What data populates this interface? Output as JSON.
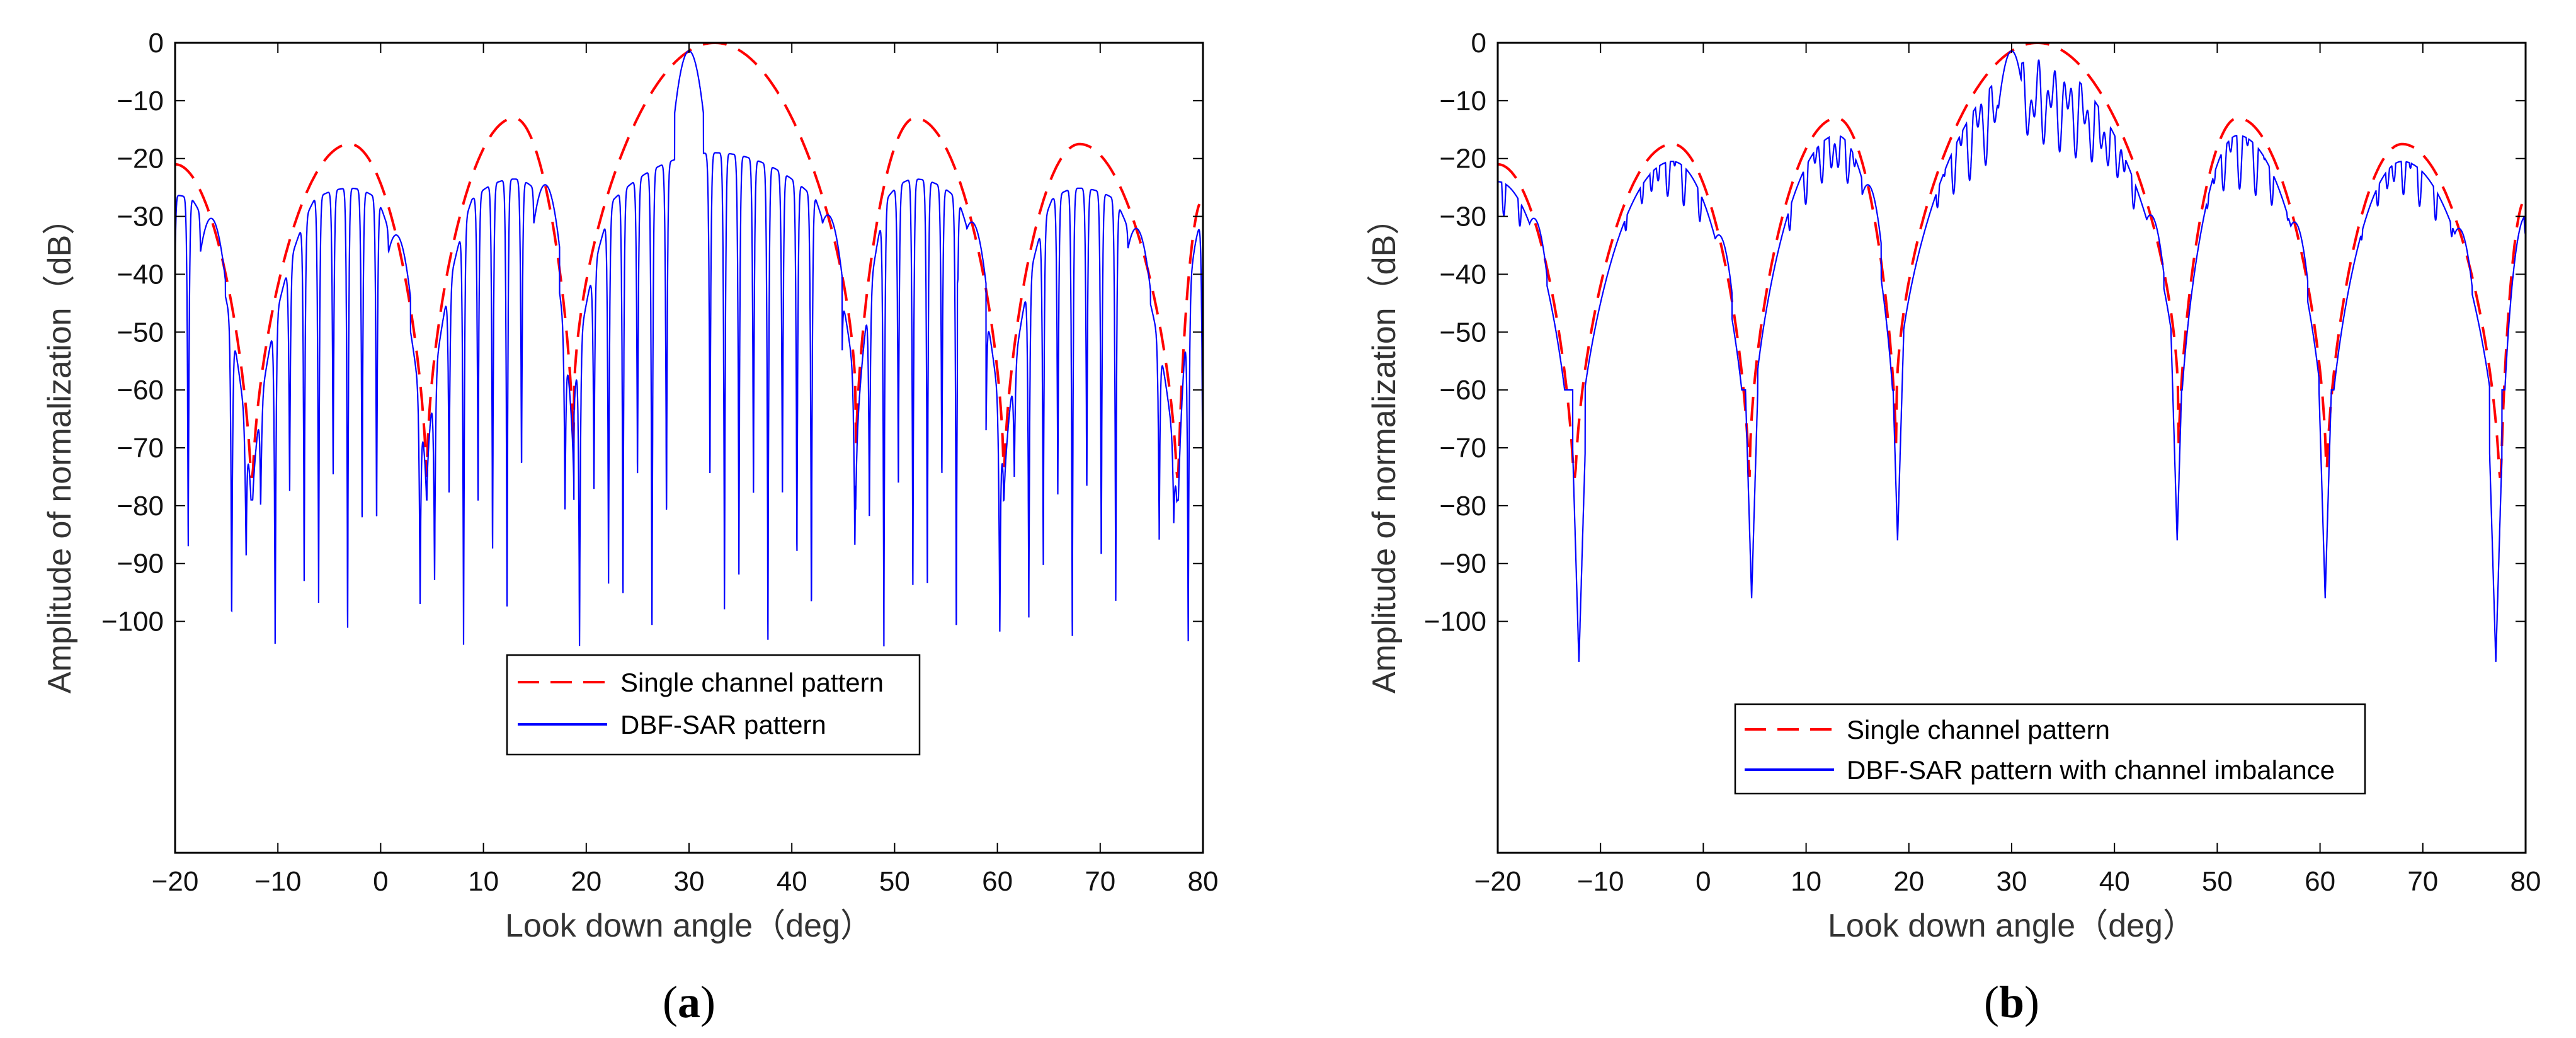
{
  "chart_data": [
    {
      "type": "line",
      "panel_label": "a",
      "xlabel": "Look down angle（deg）",
      "ylabel": "Amplitude of normalization（dB）",
      "xlim": [
        -20,
        80
      ],
      "ylim": [
        -140,
        0
      ],
      "xticks": [
        -20,
        -10,
        0,
        10,
        20,
        30,
        40,
        50,
        60,
        70,
        80
      ],
      "yticks": [
        0,
        -10,
        -20,
        -30,
        -40,
        -50,
        -60,
        -70,
        -80,
        -90,
        -100
      ],
      "xtick_labels": [
        "−20",
        "−10",
        "0",
        "10",
        "20",
        "30",
        "40",
        "50",
        "60",
        "70",
        "80"
      ],
      "ytick_labels": [
        "0",
        "−10",
        "−20",
        "−30",
        "−40",
        "−50",
        "−60",
        "−70",
        "−80",
        "−90",
        "−100"
      ],
      "legend": {
        "placement": "lower-center",
        "entries": [
          "Single channel pattern",
          "DBF-SAR pattern"
        ]
      },
      "series": [
        {
          "name": "Single channel pattern",
          "color": "#ff0000",
          "style": "dashed",
          "kind": "envelope",
          "nulls": [
            -12.5,
            4.5,
            18.8,
            46.2,
            60.6,
            77.5
          ],
          "lobes": [
            {
              "from": -20,
              "to": -12.5,
              "peak_x": -20,
              "peak_db": -21
            },
            {
              "from": -12.5,
              "to": 4.5,
              "peak_x": -3,
              "peak_db": -17.5
            },
            {
              "from": 4.5,
              "to": 18.8,
              "peak_x": 13,
              "peak_db": -13
            },
            {
              "from": 18.8,
              "to": 46.2,
              "peak_x": 32.5,
              "peak_db": 0
            },
            {
              "from": 46.2,
              "to": 60.6,
              "peak_x": 52,
              "peak_db": -13
            },
            {
              "from": 60.6,
              "to": 77.5,
              "peak_x": 68,
              "peak_db": -17.5
            },
            {
              "from": 77.5,
              "to": 80,
              "peak_x": 80,
              "peak_db": -27
            }
          ]
        },
        {
          "name": "DBF-SAR pattern",
          "color": "#0000ff",
          "style": "solid",
          "kind": "array",
          "main_beam": 30,
          "grating_lobes": [
            -16.5,
            1.5,
            16,
            43.5,
            57.5,
            73.5
          ],
          "sidelobe_level_db": -26,
          "null_depth_db": [
            -75,
            -105
          ],
          "lobes_between_nulls": 4
        }
      ]
    },
    {
      "type": "line",
      "panel_label": "b",
      "xlabel": "Look down angle（deg）",
      "ylabel": "Amplitude of normalization（dB）",
      "xlim": [
        -20,
        80
      ],
      "ylim": [
        -140,
        0
      ],
      "xticks": [
        -20,
        -10,
        0,
        10,
        20,
        30,
        40,
        50,
        60,
        70,
        80
      ],
      "yticks": [
        0,
        -10,
        -20,
        -30,
        -40,
        -50,
        -60,
        -70,
        -80,
        -90,
        -100
      ],
      "xtick_labels": [
        "−20",
        "−10",
        "0",
        "10",
        "20",
        "30",
        "40",
        "50",
        "60",
        "70",
        "80"
      ],
      "ytick_labels": [
        "0",
        "−10",
        "−20",
        "−30",
        "−40",
        "−50",
        "−60",
        "−70",
        "−80",
        "−90",
        "−100"
      ],
      "legend": {
        "placement": "lower-center",
        "entries": [
          "Single channel pattern",
          "DBF-SAR pattern with channel imbalance"
        ]
      },
      "series": [
        {
          "name": "Single channel pattern",
          "color": "#ff0000",
          "style": "dashed",
          "kind": "envelope",
          "nulls": [
            -12.5,
            4.5,
            18.8,
            46.2,
            60.6,
            77.5
          ],
          "lobes": [
            {
              "from": -20,
              "to": -12.5,
              "peak_x": -20,
              "peak_db": -21
            },
            {
              "from": -12.5,
              "to": 4.5,
              "peak_x": -3,
              "peak_db": -17.5
            },
            {
              "from": 4.5,
              "to": 18.8,
              "peak_x": 13,
              "peak_db": -13
            },
            {
              "from": 18.8,
              "to": 46.2,
              "peak_x": 32.5,
              "peak_db": 0
            },
            {
              "from": 46.2,
              "to": 60.6,
              "peak_x": 52,
              "peak_db": -13
            },
            {
              "from": 60.6,
              "to": 77.5,
              "peak_x": 68,
              "peak_db": -17.5
            },
            {
              "from": 77.5,
              "to": 80,
              "peak_x": 80,
              "peak_db": -27
            }
          ]
        },
        {
          "name": "DBF-SAR pattern with channel imbalance",
          "color": "#0000ff",
          "style": "solid",
          "kind": "imbalanced",
          "main_beam": 30,
          "grating_lobes": [
            -16.5,
            1.5,
            16,
            43.5,
            57.5,
            73.5
          ],
          "sidelobe_level_db": -18,
          "null_positions": [
            -12.1,
            4.7,
            18.9,
            46.1,
            60.5,
            77.1
          ],
          "null_depth_db": [
            -107,
            -96,
            -86,
            -86,
            -96,
            -107
          ]
        }
      ]
    }
  ]
}
